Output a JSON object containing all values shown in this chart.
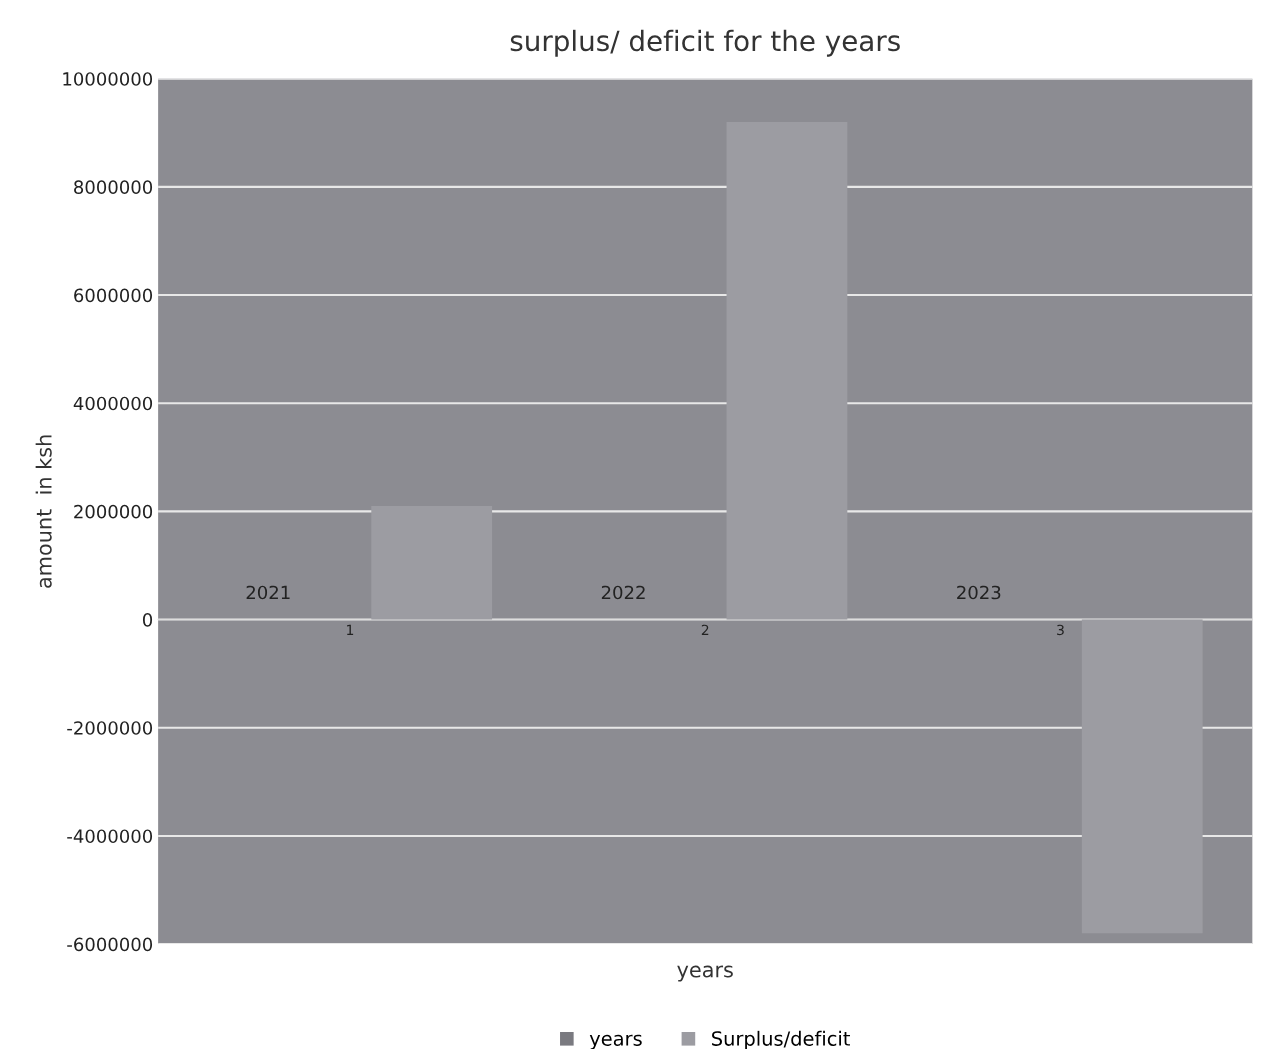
{
  "chart_data": {
    "type": "bar",
    "title": "surplus/ deficit for the years",
    "xlabel": "years",
    "ylabel": "amount  in ksh",
    "categories": [
      "1",
      "2",
      "3"
    ],
    "series": [
      {
        "name": "years",
        "color": "#7a7a80",
        "values": [
          2021,
          2022,
          2023
        ],
        "value_labels": [
          "2021",
          "2022",
          "2023"
        ]
      },
      {
        "name": "Surplus/deficit",
        "color": "#9c9ca2",
        "values": [
          2100000,
          9200000,
          -5800000
        ]
      }
    ],
    "ylim": [
      -6000000,
      10000000
    ],
    "yticks": [
      -6000000,
      -4000000,
      -2000000,
      0,
      2000000,
      4000000,
      6000000,
      8000000,
      10000000
    ],
    "grid": "y",
    "legend": "bottom"
  }
}
